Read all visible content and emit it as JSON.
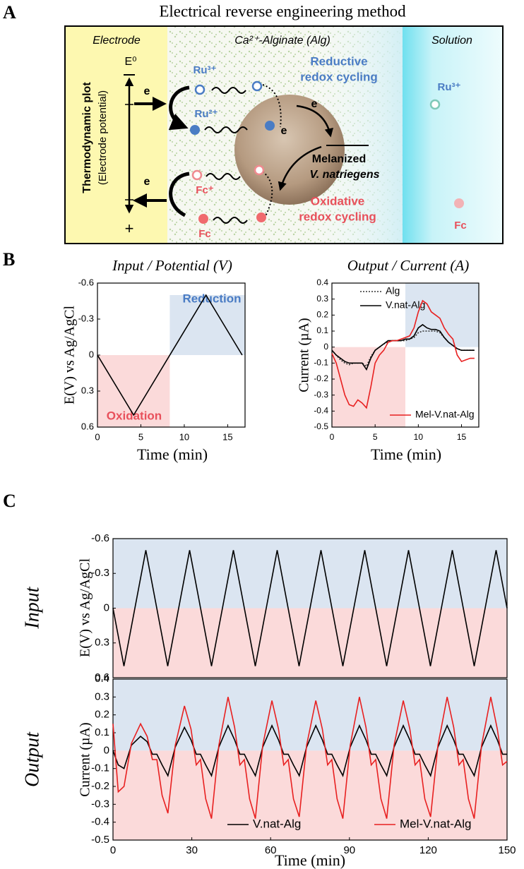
{
  "panel_a": {
    "label": "A",
    "title": "Electrical reverse engineering method",
    "zones": [
      "Electrode",
      "Ca²⁺-Alginate (Alg)",
      "Solution"
    ],
    "axis_title": "Thermodynamic plot",
    "axis_subtitle": "(Electrode potential)",
    "e0": "E⁰",
    "plus": "+",
    "electrons": [
      "e",
      "e",
      "e",
      "e"
    ],
    "species": [
      "Ru³⁺",
      "Ru²⁺",
      "Fc⁺",
      "Fc",
      "Ru³⁺",
      "Fc"
    ],
    "reductive": [
      "Reductive",
      "redox cycling"
    ],
    "oxidative": [
      "Oxidative",
      "redox cycling"
    ],
    "cell": [
      "Melanized",
      "V. natriegens"
    ]
  },
  "panel_labels": [
    "B",
    "C"
  ],
  "chart_data": [
    {
      "type": "line",
      "title": "Input / Potential (V)",
      "y_label": "E(V) vs Ag/AgCl",
      "x_label": "Time (min)",
      "xlim": [
        0,
        17
      ],
      "ylim": [
        0.6,
        -0.6
      ],
      "xticks": [
        0,
        5,
        10,
        15
      ],
      "yticks": [
        -0.6,
        -0.3,
        0,
        0.3,
        0.6
      ],
      "x": [
        0,
        4.17,
        12.5,
        16.67
      ],
      "series": [
        {
          "color": "#000000",
          "values": [
            0,
            0.5,
            -0.5,
            0
          ]
        }
      ],
      "regions": [
        {
          "label": "Oxidation",
          "x": [
            0,
            8.33
          ],
          "y": [
            0,
            0.6
          ],
          "color": "#fbdada",
          "text_color": "#e8505b"
        },
        {
          "label": "Reduction",
          "x": [
            8.33,
            17
          ],
          "y": [
            -0.5,
            0
          ],
          "color": "#dbe5f1",
          "text_color": "#4a7cc4"
        }
      ]
    },
    {
      "type": "line",
      "title": "Output / Current (A)",
      "y_label": "Current (µA)",
      "x_label": "Time (min)",
      "xlim": [
        0,
        17
      ],
      "ylim": [
        -0.5,
        0.4
      ],
      "xticks": [
        0,
        5,
        10,
        15
      ],
      "yticks": [
        -0.5,
        -0.4,
        -0.3,
        -0.2,
        -0.1,
        0,
        0.1,
        0.2,
        0.3,
        0.4
      ],
      "x": [
        0,
        0.5,
        1,
        1.5,
        2,
        2.5,
        3,
        3.5,
        4,
        4.5,
        5,
        5.5,
        6,
        6.5,
        7,
        7.5,
        8,
        8.5,
        9,
        9.5,
        10,
        10.5,
        11,
        11.5,
        12,
        12.5,
        13,
        13.5,
        14,
        14.5,
        15,
        15.5,
        16,
        16.5
      ],
      "series": [
        {
          "name": "Alg",
          "color": "#333333",
          "dash": "2,2",
          "values": [
            -0.02,
            -0.05,
            -0.08,
            -0.1,
            -0.11,
            -0.1,
            -0.1,
            -0.1,
            -0.12,
            -0.06,
            -0.02,
            0,
            0.02,
            0.03,
            0.04,
            0.04,
            0.04,
            0.04,
            0.05,
            0.06,
            0.09,
            0.1,
            0.1,
            0.1,
            0.1,
            0.09,
            0.06,
            0.03,
            0.01,
            -0.01,
            -0.02,
            -0.02,
            -0.02,
            -0.02
          ]
        },
        {
          "name": "V.nat-Alg",
          "color": "#000000",
          "values": [
            -0.02,
            -0.05,
            -0.07,
            -0.09,
            -0.1,
            -0.1,
            -0.1,
            -0.1,
            -0.14,
            -0.07,
            -0.02,
            0,
            0.02,
            0.04,
            0.04,
            0.04,
            0.04,
            0.05,
            0.05,
            0.07,
            0.12,
            0.14,
            0.12,
            0.11,
            0.11,
            0.1,
            0.06,
            0.03,
            0.01,
            -0.01,
            -0.02,
            -0.02,
            -0.02,
            -0.02
          ]
        },
        {
          "name": "Mel-V.nat-Alg",
          "color": "#e82020",
          "values": [
            -0.04,
            -0.1,
            -0.2,
            -0.3,
            -0.36,
            -0.37,
            -0.33,
            -0.35,
            -0.38,
            -0.25,
            -0.1,
            -0.05,
            -0.02,
            0.03,
            0.04,
            0.04,
            0.05,
            0.06,
            0.07,
            0.12,
            0.22,
            0.29,
            0.27,
            0.22,
            0.2,
            0.18,
            0.12,
            0.08,
            0.05,
            -0.05,
            -0.09,
            -0.08,
            -0.07,
            -0.07
          ]
        }
      ],
      "regions": [
        {
          "x": [
            0,
            8.5
          ],
          "y": [
            -0.5,
            0
          ],
          "color": "#fbdada"
        },
        {
          "x": [
            8.5,
            17
          ],
          "y": [
            0,
            0.4
          ],
          "color": "#dbe5f1"
        }
      ]
    },
    {
      "type": "line",
      "side_label": "Input",
      "y_label": "E(V) vs Ag/AgCl",
      "xlim": [
        0,
        150
      ],
      "ylim": [
        0.6,
        -0.6
      ],
      "yticks": [
        -0.6,
        -0.3,
        0,
        0.3,
        0.6
      ],
      "x": [
        0,
        4.17,
        12.5,
        20.83,
        29.17,
        37.5,
        45.83,
        54.17,
        62.5,
        70.83,
        79.17,
        87.5,
        95.83,
        104.17,
        112.5,
        120.83,
        129.17,
        137.5,
        145.83,
        150
      ],
      "series": [
        {
          "color": "#000000",
          "values": [
            0,
            0.5,
            -0.5,
            0.5,
            -0.5,
            0.5,
            -0.5,
            0.5,
            -0.5,
            0.5,
            -0.5,
            0.5,
            -0.5,
            0.5,
            -0.5,
            0.5,
            -0.5,
            0.5,
            -0.5,
            0
          ]
        }
      ],
      "regions": [
        {
          "x": [
            0,
            150
          ],
          "y": [
            -0.6,
            0
          ],
          "color": "#dbe5f1"
        },
        {
          "x": [
            0,
            150
          ],
          "y": [
            0,
            0.6
          ],
          "color": "#fbdada"
        }
      ]
    },
    {
      "type": "line",
      "side_label": "Output",
      "y_label": "Current (µA)",
      "x_label": "Time (min)",
      "xlim": [
        0,
        150
      ],
      "ylim": [
        -0.5,
        0.4
      ],
      "xticks": [
        0,
        30,
        60,
        90,
        120,
        150
      ],
      "yticks": [
        -0.5,
        -0.4,
        -0.3,
        -0.2,
        -0.1,
        0,
        0.1,
        0.2,
        0.3,
        0.4
      ],
      "x": [
        0,
        2,
        4.2,
        7,
        10.5,
        13,
        15,
        16.7,
        18.7,
        20.9,
        23.7,
        27.2,
        29.7,
        31.7,
        33.3,
        35.3,
        37.5,
        40.3,
        43.8,
        46.3,
        48.3,
        50,
        52,
        54.2,
        57,
        60.5,
        63,
        65,
        66.7,
        68.7,
        70.9,
        73.7,
        77.2,
        79.7,
        81.7,
        83.3,
        85.3,
        87.5,
        90.3,
        93.8,
        96.3,
        98.3,
        100,
        102,
        104.2,
        107,
        110.5,
        113,
        115,
        116.7,
        118.7,
        120.9,
        123.7,
        127.2,
        129.7,
        131.7,
        133.3,
        135.3,
        137.5,
        140.3,
        143.8,
        146.3,
        148.3,
        150
      ],
      "series": [
        {
          "name": "V.nat-Alg",
          "color": "#000000",
          "values": [
            0,
            -0.08,
            -0.1,
            0.03,
            0.08,
            0.05,
            -0.02,
            -0.02,
            -0.08,
            -0.14,
            0.02,
            0.13,
            0.06,
            -0.02,
            -0.02,
            -0.08,
            -0.14,
            0.02,
            0.14,
            0.06,
            -0.02,
            -0.02,
            -0.08,
            -0.14,
            0.02,
            0.14,
            0.06,
            -0.02,
            -0.02,
            -0.08,
            -0.14,
            0.02,
            0.14,
            0.06,
            -0.02,
            -0.02,
            -0.08,
            -0.14,
            0.02,
            0.14,
            0.06,
            -0.02,
            -0.02,
            -0.08,
            -0.14,
            0.02,
            0.14,
            0.06,
            -0.02,
            -0.02,
            -0.08,
            -0.14,
            0.02,
            0.14,
            0.06,
            -0.02,
            -0.02,
            -0.08,
            -0.14,
            0.02,
            0.14,
            0.06,
            -0.02,
            -0.02
          ]
        },
        {
          "name": "Mel-V.nat-Alg",
          "color": "#e82020",
          "values": [
            0.15,
            -0.23,
            -0.2,
            0.04,
            0.15,
            0.08,
            -0.05,
            -0.05,
            -0.25,
            -0.35,
            0.03,
            0.25,
            0.12,
            -0.08,
            -0.05,
            -0.27,
            -0.38,
            0.03,
            0.3,
            0.13,
            -0.08,
            -0.05,
            -0.27,
            -0.38,
            0.03,
            0.28,
            0.12,
            -0.08,
            -0.05,
            -0.27,
            -0.37,
            0.03,
            0.28,
            0.12,
            -0.08,
            -0.05,
            -0.27,
            -0.38,
            0.03,
            0.3,
            0.13,
            -0.08,
            -0.05,
            -0.27,
            -0.38,
            0.03,
            0.28,
            0.12,
            -0.08,
            -0.05,
            -0.27,
            -0.37,
            0.03,
            0.3,
            0.13,
            -0.08,
            -0.05,
            -0.27,
            -0.38,
            0.03,
            0.3,
            0.12,
            -0.08,
            -0.06
          ]
        }
      ],
      "regions": [
        {
          "x": [
            0,
            150
          ],
          "y": [
            0,
            0.4
          ],
          "color": "#dbe5f1"
        },
        {
          "x": [
            0,
            150
          ],
          "y": [
            -0.5,
            0
          ],
          "color": "#fbdada"
        }
      ]
    }
  ]
}
